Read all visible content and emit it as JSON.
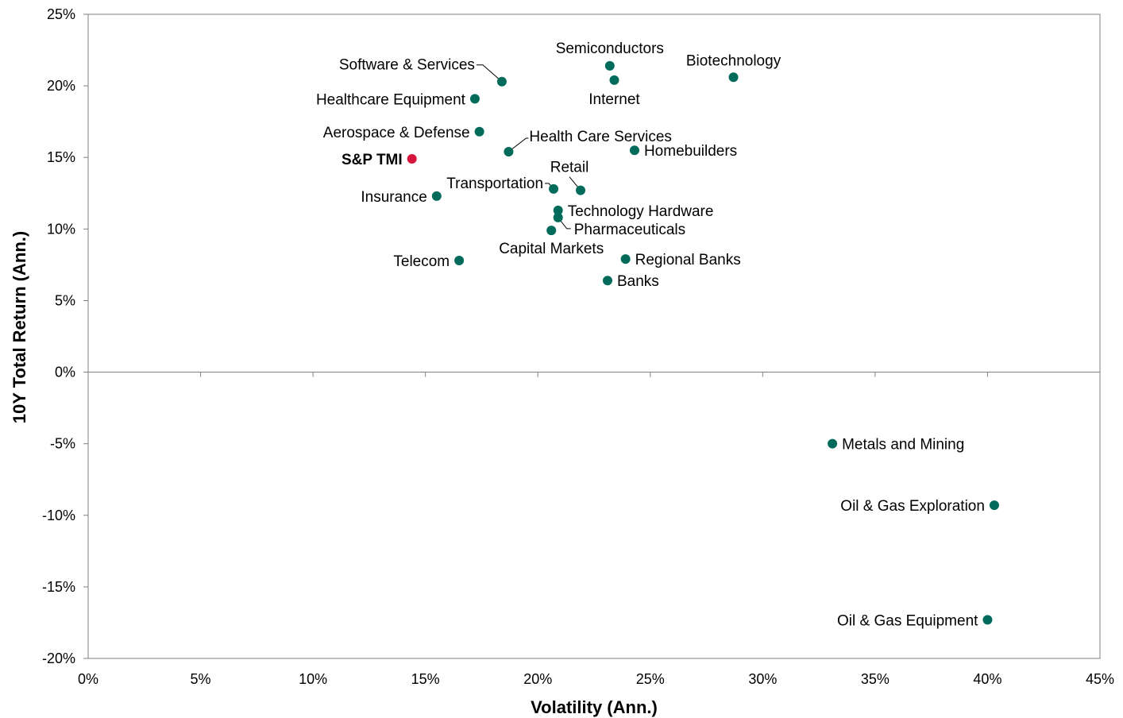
{
  "chart_data": {
    "type": "scatter",
    "xlabel": "Volatility (Ann.)",
    "ylabel": "10Y Total Return (Ann.)",
    "xlim": [
      0,
      45
    ],
    "ylim": [
      -20,
      25
    ],
    "x_ticks": [
      "0%",
      "5%",
      "10%",
      "15%",
      "20%",
      "25%",
      "30%",
      "35%",
      "40%",
      "45%"
    ],
    "y_ticks": [
      "25%",
      "20%",
      "15%",
      "10%",
      "5%",
      "0%",
      "-5%",
      "-10%",
      "-15%",
      "-20%"
    ],
    "grid": false,
    "colors": {
      "sector": "#006b5b",
      "benchmark": "#d6143c"
    },
    "points": [
      {
        "name": "Software & Services",
        "x": 18.4,
        "y": 20.3
      },
      {
        "name": "Semiconductors",
        "x": 23.2,
        "y": 21.4
      },
      {
        "name": "Biotechnology",
        "x": 28.7,
        "y": 20.6
      },
      {
        "name": "Internet",
        "x": 23.4,
        "y": 20.4
      },
      {
        "name": "Healthcare Equipment",
        "x": 17.2,
        "y": 19.1
      },
      {
        "name": "Aerospace & Defense",
        "x": 17.4,
        "y": 16.8
      },
      {
        "name": "Health Care Services",
        "x": 18.7,
        "y": 15.4
      },
      {
        "name": "Homebuilders",
        "x": 24.3,
        "y": 15.5
      },
      {
        "name": "S&P TMI",
        "x": 14.4,
        "y": 14.9,
        "highlight": true
      },
      {
        "name": "Retail",
        "x": 21.9,
        "y": 12.7
      },
      {
        "name": "Transportation",
        "x": 20.7,
        "y": 12.8
      },
      {
        "name": "Insurance",
        "x": 15.5,
        "y": 12.3
      },
      {
        "name": "Technology Hardware",
        "x": 20.9,
        "y": 11.3
      },
      {
        "name": "Pharmaceuticals",
        "x": 20.9,
        "y": 10.8
      },
      {
        "name": "Capital Markets",
        "x": 20.6,
        "y": 9.9
      },
      {
        "name": "Regional Banks",
        "x": 23.9,
        "y": 7.9
      },
      {
        "name": "Telecom",
        "x": 16.5,
        "y": 7.8
      },
      {
        "name": "Banks",
        "x": 23.1,
        "y": 6.4
      },
      {
        "name": "Metals and Mining",
        "x": 33.1,
        "y": -5.0
      },
      {
        "name": "Oil & Gas Exploration",
        "x": 40.3,
        "y": -9.3
      },
      {
        "name": "Oil & Gas Equipment",
        "x": 40.0,
        "y": -17.3
      }
    ]
  }
}
